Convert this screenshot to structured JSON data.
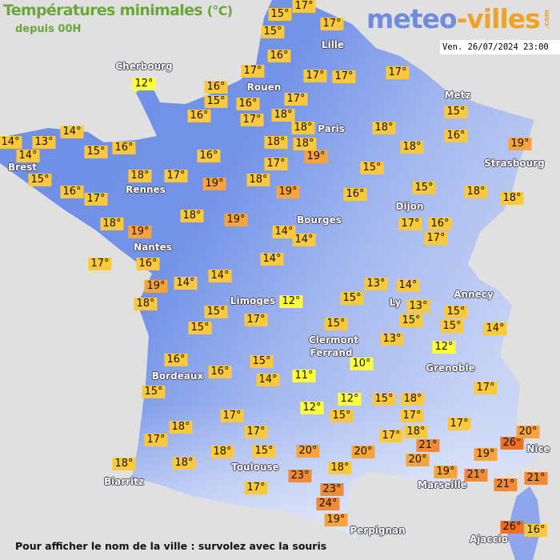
{
  "header": {
    "title": "Températures minimales",
    "unit": "(°C)",
    "subtitle": "depuis 00H"
  },
  "logo": {
    "part1": "meteo",
    "part2": "-villes",
    "suffix": ".com"
  },
  "timestamp": "Ven. 26/07/2024 23:00",
  "footer": "Pour afficher le nom de la ville : survolez avec la souris",
  "legend_colors": {
    "cold": "#ffff3a",
    "mild": "#fcc93a",
    "warm": "#f9a43a",
    "hot": "#f28a34",
    "very_hot": "#f07020"
  },
  "map_colors": {
    "land_west": "#6e8ee8",
    "land_east": "#a9bdf0",
    "sea": "#e1e0e0"
  },
  "temperatures": [
    15,
    15,
    17,
    17,
    16,
    12,
    16,
    15,
    16,
    17,
    16,
    17,
    17,
    18,
    18,
    17,
    17,
    17,
    14,
    14,
    13,
    14,
    15,
    15,
    16,
    18,
    17,
    16,
    19,
    18,
    17,
    18,
    18,
    19,
    16,
    17,
    18,
    19,
    18,
    19,
    19,
    18,
    18,
    15,
    16,
    15,
    15,
    16,
    19,
    18,
    18,
    17,
    16,
    17,
    17,
    16,
    14,
    14,
    14,
    14,
    14,
    19,
    18,
    15,
    15,
    17,
    12,
    15,
    13,
    14,
    13,
    15,
    15,
    13,
    15,
    15,
    14,
    12,
    16,
    16,
    15,
    15,
    14,
    11,
    10,
    17,
    12,
    12,
    15,
    15,
    18,
    17,
    17,
    17,
    17,
    18,
    17,
    18,
    15,
    20,
    20,
    17,
    18,
    21,
    20,
    19,
    18,
    18,
    17,
    18,
    23,
    23,
    24,
    19,
    19,
    21,
    21,
    21,
    26,
    20,
    26,
    16
  ],
  "cities": [
    "Cherbourg",
    "Rouen",
    "Lille",
    "Paris",
    "Metz",
    "Strasbourg",
    "Brest",
    "Rennes",
    "Nantes",
    "Bourges",
    "Dijon",
    "Limoges",
    "Ly",
    "Annecy",
    "Clermont",
    "Ferrand",
    "Grenoble",
    "Bordeaux",
    "Toulouse",
    "Biarritz",
    "Marseille",
    "Nice",
    "Perpignan",
    "Ajaccio"
  ]
}
